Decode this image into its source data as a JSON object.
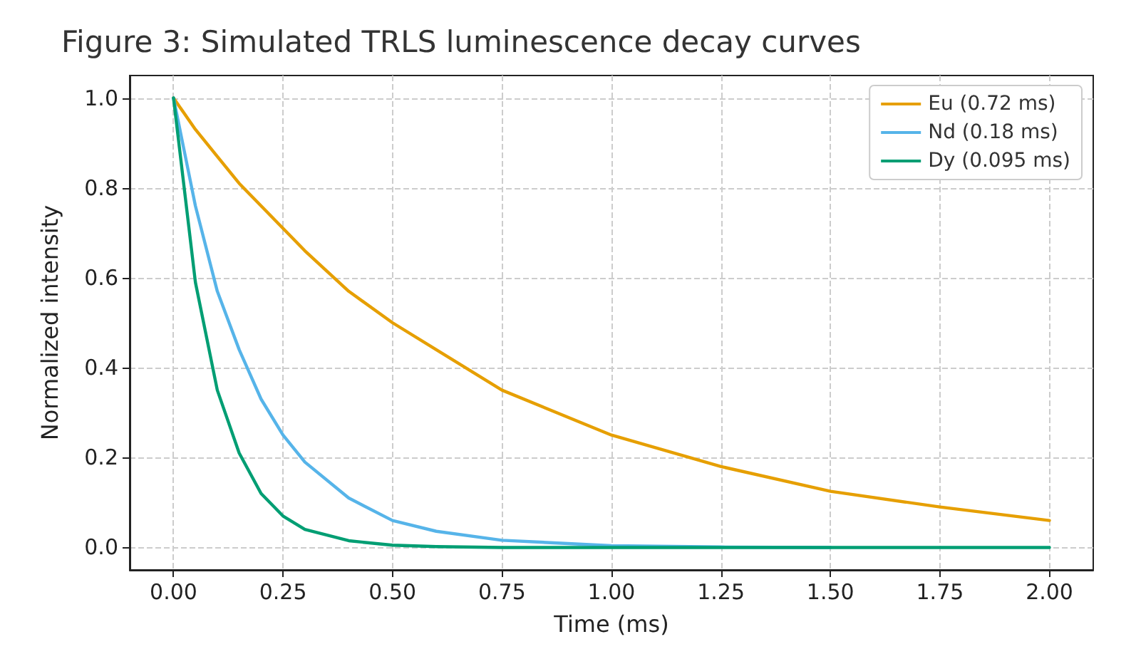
{
  "chart_data": {
    "type": "line",
    "title": "Figure 3: Simulated TRLS luminescence decay curves",
    "xlabel": "Time (ms)",
    "ylabel": "Normalized intensity",
    "x": [
      0,
      0.05,
      0.1,
      0.15,
      0.2,
      0.25,
      0.3,
      0.4,
      0.5,
      0.6,
      0.75,
      1.0,
      1.25,
      1.5,
      1.75,
      2.0
    ],
    "series": [
      {
        "name": "Eu (0.72 ms)",
        "color": "#e69f00",
        "values": [
          1,
          0.93,
          0.87,
          0.81,
          0.76,
          0.71,
          0.66,
          0.57,
          0.5,
          0.44,
          0.35,
          0.25,
          0.18,
          0.125,
          0.09,
          0.06
        ]
      },
      {
        "name": "Nd (0.18 ms)",
        "color": "#56b4e9",
        "values": [
          1,
          0.76,
          0.57,
          0.44,
          0.33,
          0.25,
          0.19,
          0.11,
          0.06,
          0.036,
          0.016,
          0.004,
          0.001,
          0,
          null,
          null
        ]
      },
      {
        "name": "Dy (0.095 ms)",
        "color": "#009e73",
        "values": [
          1,
          0.59,
          0.35,
          0.21,
          0.12,
          0.07,
          0.04,
          0.015,
          0.005,
          0.002,
          0,
          0,
          0,
          0,
          0,
          0
        ]
      }
    ],
    "xlim": [
      -0.1,
      2.1
    ],
    "ylim": [
      -0.05,
      1.05
    ],
    "xticks": [
      {
        "value": 0,
        "label": "0.00"
      },
      {
        "value": 0.25,
        "label": "0.25"
      },
      {
        "value": 0.5,
        "label": "0.50"
      },
      {
        "value": 0.75,
        "label": "0.75"
      },
      {
        "value": 1,
        "label": "1.00"
      },
      {
        "value": 1.25,
        "label": "1.25"
      },
      {
        "value": 1.5,
        "label": "1.50"
      },
      {
        "value": 1.75,
        "label": "1.75"
      },
      {
        "value": 2,
        "label": "2.00"
      }
    ],
    "yticks": [
      {
        "value": 0,
        "label": "0.0"
      },
      {
        "value": 0.2,
        "label": "0.2"
      },
      {
        "value": 0.4,
        "label": "0.4"
      },
      {
        "value": 0.6,
        "label": "0.6"
      },
      {
        "value": 0.8,
        "label": "0.8"
      },
      {
        "value": 1,
        "label": "1.0"
      }
    ],
    "grid": true,
    "legend": "top right",
    "line_style": "solid",
    "marker": "none"
  }
}
